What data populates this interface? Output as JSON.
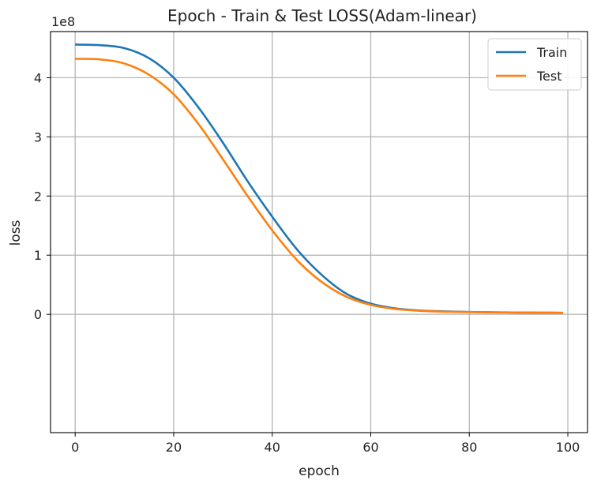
{
  "chart_data": {
    "type": "line",
    "title": "Epoch - Train & Test LOSS(Adam-linear)",
    "xlabel": "epoch",
    "ylabel": "loss",
    "y_offset_text": "1e8",
    "xlim": [
      -5,
      104
    ],
    "ylim": [
      -2.0,
      4.78
    ],
    "x_ticks": [
      0,
      20,
      40,
      60,
      80,
      100
    ],
    "y_ticks": [
      0,
      1,
      2,
      3,
      4
    ],
    "x_tick_labels": [
      "0",
      "20",
      "40",
      "60",
      "80",
      "100"
    ],
    "y_tick_labels": [
      "0",
      "1",
      "2",
      "3",
      "4"
    ],
    "grid": true,
    "legend_position": "top-right",
    "x": [
      0,
      5,
      10,
      15,
      20,
      25,
      30,
      35,
      40,
      45,
      50,
      55,
      60,
      65,
      70,
      75,
      80,
      85,
      90,
      95,
      99
    ],
    "series": [
      {
        "name": "Train",
        "color": "#1f77b4",
        "values": [
          4.56,
          4.55,
          4.5,
          4.33,
          4.0,
          3.5,
          2.9,
          2.25,
          1.65,
          1.1,
          0.67,
          0.35,
          0.18,
          0.1,
          0.065,
          0.05,
          0.04,
          0.035,
          0.03,
          0.028,
          0.026
        ]
      },
      {
        "name": "Test",
        "color": "#ff7f0e",
        "values": [
          4.32,
          4.31,
          4.24,
          4.05,
          3.72,
          3.22,
          2.62,
          2.0,
          1.42,
          0.92,
          0.55,
          0.3,
          0.16,
          0.09,
          0.06,
          0.045,
          0.038,
          0.033,
          0.029,
          0.027,
          0.025
        ]
      }
    ]
  }
}
